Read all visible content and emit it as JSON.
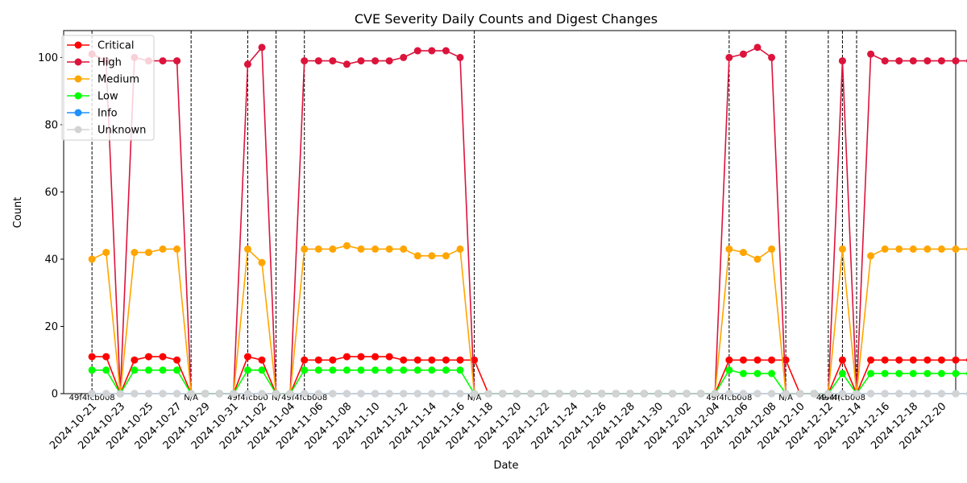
{
  "chart_data": {
    "type": "line",
    "title": "CVE Severity Daily Counts and Digest Changes",
    "xlabel": "Date",
    "ylabel": "Count",
    "x_start": "2024-10-21",
    "x_end": "2024-12-18",
    "xlim": [
      "2024-10-19",
      "2024-12-21"
    ],
    "ylim": [
      0,
      108
    ],
    "y_ticks": [
      0,
      20,
      40,
      60,
      80,
      100
    ],
    "x_ticks": [
      "2024-10-21",
      "2024-10-23",
      "2024-10-25",
      "2024-10-27",
      "2024-10-29",
      "2024-10-31",
      "2024-11-02",
      "2024-11-04",
      "2024-11-06",
      "2024-11-08",
      "2024-11-10",
      "2024-11-12",
      "2024-11-14",
      "2024-11-16",
      "2024-11-18",
      "2024-11-20",
      "2024-11-22",
      "2024-11-24",
      "2024-11-26",
      "2024-11-28",
      "2024-11-30",
      "2024-12-02",
      "2024-12-04",
      "2024-12-06",
      "2024-12-08",
      "2024-12-10",
      "2024-12-12",
      "2024-12-14",
      "2024-12-16",
      "2024-12-18",
      "2024-12-20"
    ],
    "legend": "upper-left",
    "grid": false,
    "series": [
      {
        "name": "Critical",
        "color": "#ff0000",
        "values": [
          11,
          11,
          0,
          10,
          11,
          11,
          10,
          0,
          0,
          0,
          0,
          11,
          10,
          0,
          0,
          10,
          10,
          10,
          11,
          11,
          11,
          11,
          10,
          10,
          10,
          10,
          10,
          10,
          0,
          0,
          0,
          0,
          0,
          0,
          0,
          0,
          0,
          0,
          0,
          0,
          0,
          0,
          0,
          0,
          0,
          10,
          10,
          10,
          10,
          10,
          0,
          0,
          0,
          10,
          0,
          10,
          10,
          10,
          10,
          10,
          10,
          10,
          10
        ]
      },
      {
        "name": "High",
        "color": "#dc143c",
        "values": [
          101,
          99,
          0,
          100,
          99,
          99,
          99,
          0,
          0,
          0,
          0,
          98,
          103,
          0,
          0,
          99,
          99,
          99,
          98,
          99,
          99,
          99,
          100,
          102,
          102,
          102,
          100,
          0,
          0,
          0,
          0,
          0,
          0,
          0,
          0,
          0,
          0,
          0,
          0,
          0,
          0,
          0,
          0,
          0,
          0,
          100,
          101,
          103,
          100,
          0,
          0,
          0,
          0,
          99,
          0,
          101,
          99,
          99,
          99,
          99,
          99,
          99,
          99
        ]
      },
      {
        "name": "Medium",
        "color": "#ffa500",
        "values": [
          40,
          42,
          0,
          42,
          42,
          43,
          43,
          0,
          0,
          0,
          0,
          43,
          39,
          0,
          0,
          43,
          43,
          43,
          44,
          43,
          43,
          43,
          43,
          41,
          41,
          41,
          43,
          0,
          0,
          0,
          0,
          0,
          0,
          0,
          0,
          0,
          0,
          0,
          0,
          0,
          0,
          0,
          0,
          0,
          0,
          43,
          42,
          40,
          43,
          0,
          0,
          0,
          0,
          43,
          0,
          41,
          43,
          43,
          43,
          43,
          43,
          43,
          43
        ]
      },
      {
        "name": "Low",
        "color": "#00ff00",
        "values": [
          7,
          7,
          0,
          7,
          7,
          7,
          7,
          0,
          0,
          0,
          0,
          7,
          7,
          0,
          0,
          7,
          7,
          7,
          7,
          7,
          7,
          7,
          7,
          7,
          7,
          7,
          7,
          0,
          0,
          0,
          0,
          0,
          0,
          0,
          0,
          0,
          0,
          0,
          0,
          0,
          0,
          0,
          0,
          0,
          0,
          7,
          6,
          6,
          6,
          0,
          0,
          0,
          0,
          6,
          0,
          6,
          6,
          6,
          6,
          6,
          6,
          6,
          6
        ]
      },
      {
        "name": "Info",
        "color": "#1e90ff",
        "values": [
          0,
          0,
          0,
          0,
          0,
          0,
          0,
          0,
          0,
          0,
          0,
          0,
          0,
          0,
          0,
          0,
          0,
          0,
          0,
          0,
          0,
          0,
          0,
          0,
          0,
          0,
          0,
          0,
          0,
          0,
          0,
          0,
          0,
          0,
          0,
          0,
          0,
          0,
          0,
          0,
          0,
          0,
          0,
          0,
          0,
          0,
          0,
          0,
          0,
          0,
          0,
          0,
          0,
          0,
          0,
          0,
          0,
          0,
          0,
          0,
          0,
          0,
          0
        ]
      },
      {
        "name": "Unknown",
        "color": "#d3d3d3",
        "values": [
          0,
          0,
          0,
          0,
          0,
          0,
          0,
          0,
          0,
          0,
          0,
          0,
          0,
          0,
          0,
          0,
          0,
          0,
          0,
          0,
          0,
          0,
          0,
          0,
          0,
          0,
          0,
          0,
          0,
          0,
          0,
          0,
          0,
          0,
          0,
          0,
          0,
          0,
          0,
          0,
          0,
          0,
          0,
          0,
          0,
          0,
          0,
          0,
          0,
          0,
          0,
          0,
          0,
          0,
          0,
          0,
          0,
          0,
          0,
          0,
          0,
          0,
          0
        ]
      }
    ],
    "annotations": [
      {
        "date": "2024-10-21",
        "label": "49f4fcb008"
      },
      {
        "date": "2024-10-28",
        "label": "N/A"
      },
      {
        "date": "2024-11-01",
        "label": "49f4fcb00"
      },
      {
        "date": "2024-11-03",
        "label": "N/"
      },
      {
        "date": "2024-11-05",
        "label": "49f4fcb008"
      },
      {
        "date": "2024-11-17",
        "label": "N/A"
      },
      {
        "date": "2024-12-05",
        "label": "49f4fcb008"
      },
      {
        "date": "2024-12-09",
        "label": "N/A"
      },
      {
        "date": "2024-12-12",
        "label": "49f4f("
      },
      {
        "date": "2024-12-13",
        "label": "49f4fcb008"
      },
      {
        "date": "2024-12-14",
        "label": ""
      }
    ]
  }
}
